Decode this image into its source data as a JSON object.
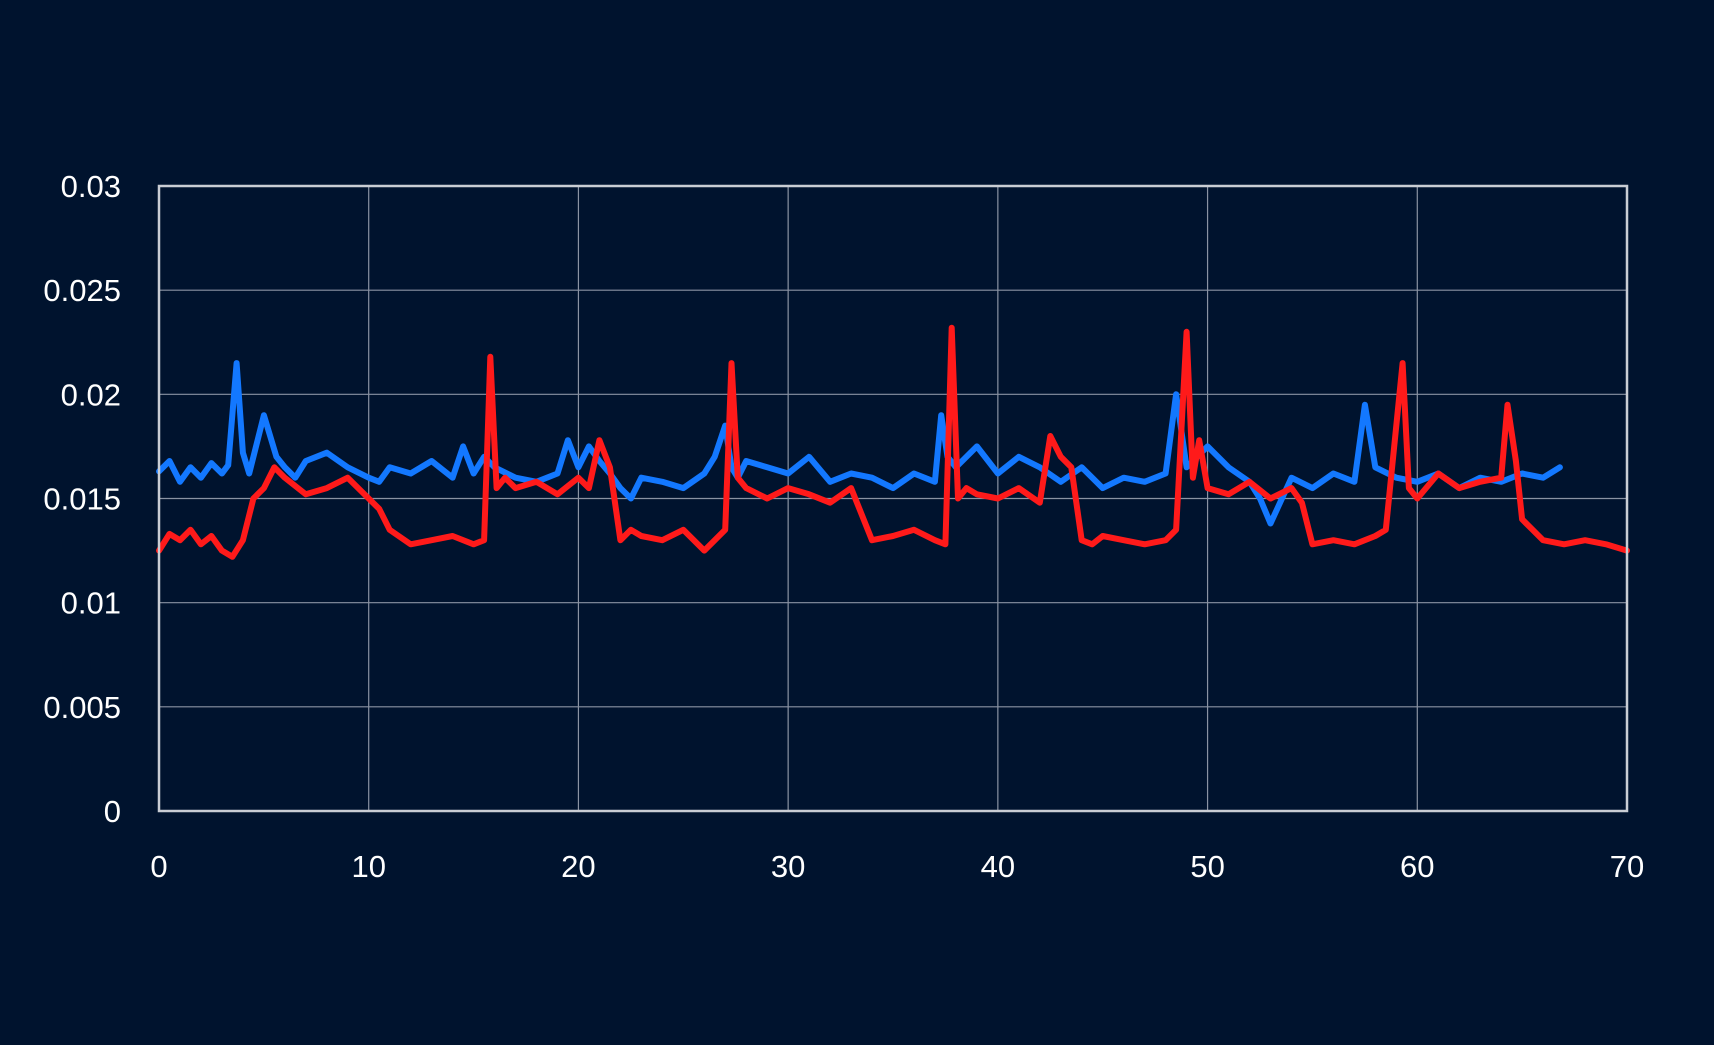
{
  "chart_data": {
    "type": "line",
    "title": "",
    "xlabel": "",
    "ylabel": "",
    "xlim": [
      0,
      70
    ],
    "ylim": [
      0,
      0.03
    ],
    "x_ticks": [
      0,
      10,
      20,
      30,
      40,
      50,
      60,
      70
    ],
    "x_tick_labels": [
      "0",
      "10",
      "20",
      "30",
      "40",
      "50",
      "60",
      "70"
    ],
    "y_ticks": [
      0,
      0.005,
      0.01,
      0.015,
      0.02,
      0.025,
      0.03
    ],
    "y_tick_labels": [
      "0",
      "0.005",
      "0.01",
      "0.015",
      "0.02",
      "0.025",
      "0.03"
    ],
    "grid": true,
    "legend": "none",
    "background_color": "#00132e",
    "grid_color": "#8a93a3",
    "series": [
      {
        "name": "blue",
        "color": "#1378ff",
        "x": [
          0,
          0.5,
          1,
          1.5,
          2,
          2.5,
          3,
          3.3,
          3.7,
          4.0,
          4.3,
          5.0,
          5.6,
          6,
          6.5,
          7,
          8,
          9,
          10,
          10.5,
          11,
          12,
          13,
          14,
          14.5,
          15,
          15.5,
          16,
          17,
          18,
          19,
          19.5,
          20,
          20.5,
          21,
          21.5,
          22,
          22.5,
          23,
          24,
          25,
          26,
          26.5,
          27,
          27.3,
          27.6,
          28,
          29,
          30,
          31,
          32,
          33,
          34,
          35,
          36,
          37,
          37.3,
          37.6,
          38,
          39,
          40,
          41,
          42,
          43,
          44,
          45,
          46,
          47,
          48,
          48.5,
          49,
          49.5,
          50,
          51,
          52,
          52.5,
          53,
          54,
          55,
          56,
          57,
          57.5,
          58,
          59,
          60,
          61,
          62,
          63,
          64,
          65,
          66,
          66.8
        ],
        "y": [
          0.0163,
          0.0168,
          0.0158,
          0.0165,
          0.016,
          0.0167,
          0.0162,
          0.0166,
          0.0215,
          0.0172,
          0.0162,
          0.019,
          0.017,
          0.0165,
          0.016,
          0.0168,
          0.0172,
          0.0165,
          0.016,
          0.0158,
          0.0165,
          0.0162,
          0.0168,
          0.016,
          0.0175,
          0.0162,
          0.017,
          0.0165,
          0.016,
          0.0158,
          0.0162,
          0.0178,
          0.0165,
          0.0175,
          0.0168,
          0.0162,
          0.0155,
          0.015,
          0.016,
          0.0158,
          0.0155,
          0.0162,
          0.017,
          0.0185,
          0.0165,
          0.016,
          0.0168,
          0.0165,
          0.0162,
          0.017,
          0.0158,
          0.0162,
          0.016,
          0.0155,
          0.0162,
          0.0158,
          0.019,
          0.017,
          0.0165,
          0.0175,
          0.0162,
          0.017,
          0.0165,
          0.0158,
          0.0165,
          0.0155,
          0.016,
          0.0158,
          0.0162,
          0.02,
          0.0165,
          0.017,
          0.0175,
          0.0165,
          0.0158,
          0.015,
          0.0138,
          0.016,
          0.0155,
          0.0162,
          0.0158,
          0.0195,
          0.0165,
          0.016,
          0.0158,
          0.0162,
          0.0155,
          0.016,
          0.0158,
          0.0162,
          0.016,
          0.0165
        ]
      },
      {
        "name": "red",
        "color": "#ff1a1a",
        "x": [
          0,
          0.5,
          1,
          1.5,
          2,
          2.5,
          3,
          3.5,
          4,
          4.5,
          5,
          5.5,
          6,
          7,
          8,
          9,
          10,
          10.5,
          11,
          12,
          13,
          14,
          15,
          15.5,
          15.8,
          16.1,
          16.5,
          17,
          18,
          19,
          20,
          20.5,
          21,
          21.5,
          22,
          22.5,
          23,
          24,
          25,
          26,
          27,
          27.3,
          27.6,
          28,
          29,
          30,
          31,
          32,
          33,
          34,
          35,
          36,
          37,
          37.5,
          37.8,
          38.1,
          38.5,
          39,
          40,
          41,
          42,
          42.5,
          43,
          43.5,
          44,
          44.5,
          45,
          46,
          47,
          48,
          48.5,
          49.0,
          49.3,
          49.6,
          50,
          51,
          52,
          53,
          54,
          54.5,
          55,
          56,
          57,
          58,
          58.5,
          59.3,
          59.6,
          60,
          61,
          62,
          63,
          64,
          64.3,
          64.7,
          65,
          65.5,
          66,
          67,
          68,
          69,
          70
        ],
        "y": [
          0.0125,
          0.0133,
          0.013,
          0.0135,
          0.0128,
          0.0132,
          0.0125,
          0.0122,
          0.013,
          0.015,
          0.0155,
          0.0165,
          0.016,
          0.0152,
          0.0155,
          0.016,
          0.015,
          0.0145,
          0.0135,
          0.0128,
          0.013,
          0.0132,
          0.0128,
          0.013,
          0.0218,
          0.0155,
          0.016,
          0.0155,
          0.0158,
          0.0152,
          0.016,
          0.0155,
          0.0178,
          0.0165,
          0.013,
          0.0135,
          0.0132,
          0.013,
          0.0135,
          0.0125,
          0.0135,
          0.0215,
          0.016,
          0.0155,
          0.015,
          0.0155,
          0.0152,
          0.0148,
          0.0155,
          0.013,
          0.0132,
          0.0135,
          0.013,
          0.0128,
          0.0232,
          0.015,
          0.0155,
          0.0152,
          0.015,
          0.0155,
          0.0148,
          0.018,
          0.017,
          0.0165,
          0.013,
          0.0128,
          0.0132,
          0.013,
          0.0128,
          0.013,
          0.0135,
          0.023,
          0.016,
          0.0178,
          0.0155,
          0.0152,
          0.0158,
          0.015,
          0.0155,
          0.0148,
          0.0128,
          0.013,
          0.0128,
          0.0132,
          0.0135,
          0.0215,
          0.0155,
          0.015,
          0.0162,
          0.0155,
          0.0158,
          0.016,
          0.0195,
          0.0168,
          0.014,
          0.0135,
          0.013,
          0.0128,
          0.013,
          0.0128,
          0.0125
        ]
      }
    ]
  }
}
